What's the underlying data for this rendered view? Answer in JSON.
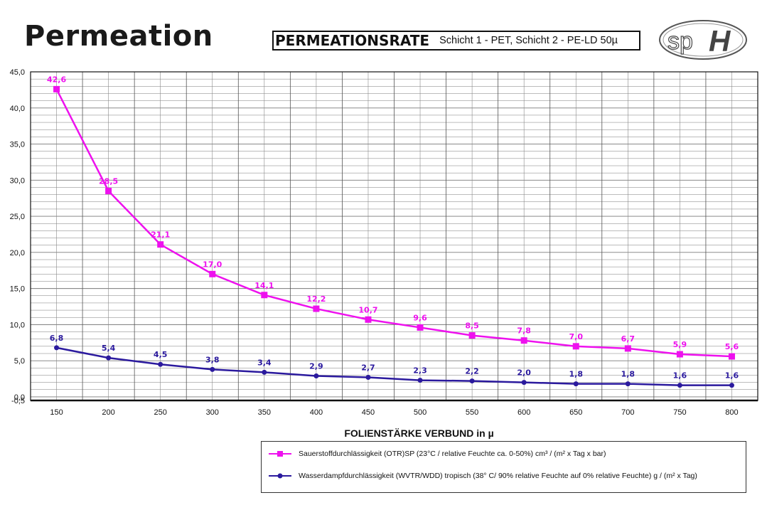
{
  "header": {
    "title": "Permeation",
    "subtitle_main": "PERMEATIONSRATE",
    "subtitle_detail": "Schicht 1 - PET, Schicht 2 - PE-LD 50µ",
    "logo_text_sp": "sp",
    "logo_text_h": "H"
  },
  "colors": {
    "otr": "#ee11ee",
    "wvtr": "#2b1a9e",
    "grid": "#666666"
  },
  "chart_data": {
    "type": "line",
    "title": "PERMEATIONSRATE",
    "xlabel": "FOLIENSTÄRKE VERBUND in µ",
    "ylabel": "",
    "categories": [
      "150",
      "200",
      "250",
      "300",
      "350",
      "400",
      "450",
      "500",
      "550",
      "600",
      "650",
      "700",
      "750",
      "800"
    ],
    "ylim": [
      -0.5,
      45.0
    ],
    "yticks": [
      "45,0",
      "40,0",
      "35,0",
      "30,0",
      "25,0",
      "20,0",
      "15,0",
      "10,0",
      "5,0",
      "0,0",
      "-0,5"
    ],
    "grid": true,
    "series": [
      {
        "name": "Sauerstoffdurchlässigkeit (OTR)SP (23°C / relative Feuchte ca. 0-50%) cm³  / (m²  x Tag x bar)",
        "marker": "square",
        "values": [
          42.6,
          28.5,
          21.1,
          17.0,
          14.1,
          12.2,
          10.7,
          9.6,
          8.5,
          7.8,
          7.0,
          6.7,
          5.9,
          5.6
        ],
        "labels": [
          "42,6",
          "28,5",
          "21,1",
          "17,0",
          "14,1",
          "12,2",
          "10,7",
          "9,6",
          "8,5",
          "7,8",
          "7,0",
          "6,7",
          "5,9",
          "5,6"
        ]
      },
      {
        "name": "Wasserdampfdurchlässigkeit (WVTR/WDD) tropisch (38° C/ 90% relative Feuchte auf 0% relative Feuchte) g / (m²  x Tag)",
        "marker": "circle",
        "values": [
          6.8,
          5.4,
          4.5,
          3.8,
          3.4,
          2.9,
          2.7,
          2.3,
          2.2,
          2.0,
          1.8,
          1.8,
          1.6,
          1.6
        ],
        "labels": [
          "6,8",
          "5,4",
          "4,5",
          "3,8",
          "3,4",
          "2,9",
          "2,7",
          "2,3",
          "2,2",
          "2,0",
          "1,8",
          "1,8",
          "1,6",
          "1,6"
        ]
      }
    ],
    "legend": "bottom-right"
  }
}
